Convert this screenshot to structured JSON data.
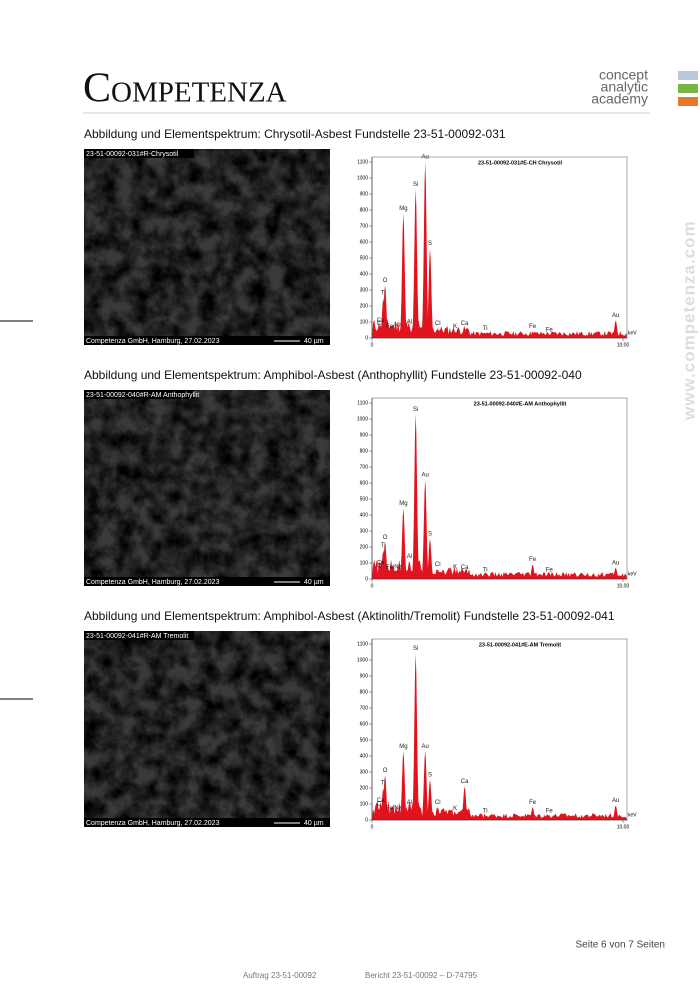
{
  "header": {
    "logo": "Competenza",
    "tagline": [
      "concept",
      "analytic",
      "academy"
    ]
  },
  "side_text": "www.competenza.com",
  "figures": [
    {
      "caption": "Abbildung und Elementspektrum: Chrysotil-Asbest Fundstelle 23-51-00092-031",
      "image": {
        "label": "23-51-00092-031#R-Chrysotil",
        "credit": "Competenza GmbH, Hamburg, 27.02.2023",
        "scale": "40 µm"
      },
      "spectrum": {
        "type": "spectrum",
        "title": "23-51-00092-031#E-CH Chrysotil",
        "color": "#e0141e",
        "ylim": [
          0,
          1150
        ],
        "yticks": [
          0,
          100,
          200,
          300,
          400,
          500,
          600,
          700,
          800,
          900,
          1000,
          1100
        ],
        "xlim": [
          0,
          10
        ],
        "xticks": [
          0,
          {
            "value": 10,
            "label": "10.00"
          }
        ],
        "x_label": "keV",
        "peaks": [
          {
            "label": "C",
            "x": 0.28,
            "y": 60
          },
          {
            "label": "O",
            "x": 0.52,
            "y": 330
          },
          {
            "label": "Ti",
            "x": 0.45,
            "y": 250
          },
          {
            "label": "Ca",
            "x": 0.34,
            "y": 80
          },
          {
            "label": "Fe",
            "x": 0.7,
            "y": 40
          },
          {
            "label": "Na",
            "x": 1.04,
            "y": 50
          },
          {
            "label": "Mg",
            "x": 1.25,
            "y": 780
          },
          {
            "label": "Al",
            "x": 1.49,
            "y": 70
          },
          {
            "label": "Si",
            "x": 1.74,
            "y": 930
          },
          {
            "label": "Au",
            "x": 2.12,
            "y": 1100
          },
          {
            "label": "S",
            "x": 2.31,
            "y": 560
          },
          {
            "label": "Cl",
            "x": 2.62,
            "y": 60
          },
          {
            "label": "K",
            "x": 3.31,
            "y": 40
          },
          {
            "label": "Ca",
            "x": 3.69,
            "y": 60
          },
          {
            "label": "Ti",
            "x": 4.51,
            "y": 30
          },
          {
            "label": "Fe",
            "x": 6.4,
            "y": 40
          },
          {
            "label": "Fe",
            "x": 7.06,
            "y": 20
          },
          {
            "label": "Au",
            "x": 9.71,
            "y": 110
          }
        ]
      }
    },
    {
      "caption": "Abbildung und Elementspektrum: Amphibol-Asbest (Anthophyllit) Fundstelle 23-51-00092-040",
      "image": {
        "label": "23-51-00092-040#R-AM Anthophyllit",
        "credit": "Competenza GmbH, Hamburg, 27.02.2023",
        "scale": "40 µm"
      },
      "spectrum": {
        "type": "spectrum",
        "title": "23-51-00092-040#E-AM Anthophyllit",
        "color": "#e0141e",
        "ylim": [
          0,
          1150
        ],
        "yticks": [
          0,
          100,
          200,
          300,
          400,
          500,
          600,
          700,
          800,
          900,
          1000,
          1100
        ],
        "xlim": [
          0,
          10
        ],
        "xticks": [
          0,
          {
            "value": 10,
            "label": "10.00"
          }
        ],
        "x_label": "keV",
        "peaks": [
          {
            "label": "C",
            "x": 0.28,
            "y": 50
          },
          {
            "label": "O",
            "x": 0.52,
            "y": 230
          },
          {
            "label": "Ti",
            "x": 0.45,
            "y": 180
          },
          {
            "label": "Ca",
            "x": 0.34,
            "y": 70
          },
          {
            "label": "Fe",
            "x": 0.7,
            "y": 40
          },
          {
            "label": "Na",
            "x": 1.04,
            "y": 45
          },
          {
            "label": "Mg",
            "x": 1.25,
            "y": 440
          },
          {
            "label": "Al",
            "x": 1.49,
            "y": 110
          },
          {
            "label": "Si",
            "x": 1.74,
            "y": 1030
          },
          {
            "label": "Au",
            "x": 2.12,
            "y": 620
          },
          {
            "label": "S",
            "x": 2.31,
            "y": 250
          },
          {
            "label": "Cl",
            "x": 2.62,
            "y": 60
          },
          {
            "label": "K",
            "x": 3.31,
            "y": 45
          },
          {
            "label": "Ca",
            "x": 3.69,
            "y": 40
          },
          {
            "label": "Ti",
            "x": 4.51,
            "y": 25
          },
          {
            "label": "Fe",
            "x": 6.4,
            "y": 90
          },
          {
            "label": "Fe",
            "x": 7.06,
            "y": 25
          },
          {
            "label": "Au",
            "x": 9.71,
            "y": 70
          }
        ]
      }
    },
    {
      "caption": "Abbildung und Elementspektrum: Amphibol-Asbest (Aktinolith/Tremolit) Fundstelle 23-51-00092-041",
      "image": {
        "label": "23-51-00092-041#R-AM Tremolit",
        "credit": "Competenza GmbH, Hamburg, 27.02.2023",
        "scale": "40 µm"
      },
      "spectrum": {
        "type": "spectrum",
        "title": "23-51-00092-041#E-AM Tremolit",
        "color": "#e0141e",
        "ylim": [
          0,
          1150
        ],
        "yticks": [
          0,
          100,
          200,
          300,
          400,
          500,
          600,
          700,
          800,
          900,
          1000,
          1100
        ],
        "xlim": [
          0,
          10
        ],
        "xticks": [
          0,
          {
            "value": 10,
            "label": "10.00"
          }
        ],
        "x_label": "keV",
        "peaks": [
          {
            "label": "C",
            "x": 0.28,
            "y": 70
          },
          {
            "label": "O",
            "x": 0.52,
            "y": 280
          },
          {
            "label": "Ti",
            "x": 0.45,
            "y": 200
          },
          {
            "label": "Ca",
            "x": 0.34,
            "y": 90
          },
          {
            "label": "Fe",
            "x": 0.7,
            "y": 40
          },
          {
            "label": "Na",
            "x": 1.04,
            "y": 45
          },
          {
            "label": "Mg",
            "x": 1.25,
            "y": 430
          },
          {
            "label": "Al",
            "x": 1.49,
            "y": 80
          },
          {
            "label": "Si",
            "x": 1.74,
            "y": 1040
          },
          {
            "label": "Au",
            "x": 2.12,
            "y": 430
          },
          {
            "label": "S",
            "x": 2.31,
            "y": 250
          },
          {
            "label": "Cl",
            "x": 2.62,
            "y": 80
          },
          {
            "label": "K",
            "x": 3.31,
            "y": 40
          },
          {
            "label": "Ca",
            "x": 3.69,
            "y": 210
          },
          {
            "label": "Ti",
            "x": 4.51,
            "y": 25
          },
          {
            "label": "Fe",
            "x": 6.4,
            "y": 80
          },
          {
            "label": "Fe",
            "x": 7.06,
            "y": 25
          },
          {
            "label": "Au",
            "x": 9.71,
            "y": 90
          }
        ]
      }
    }
  ],
  "footer": {
    "page": "Seite 6 von 7 Seiten",
    "order": "Auftrag 23-51-00092",
    "report": "Bericht 23-51-00092 – D-74795"
  }
}
